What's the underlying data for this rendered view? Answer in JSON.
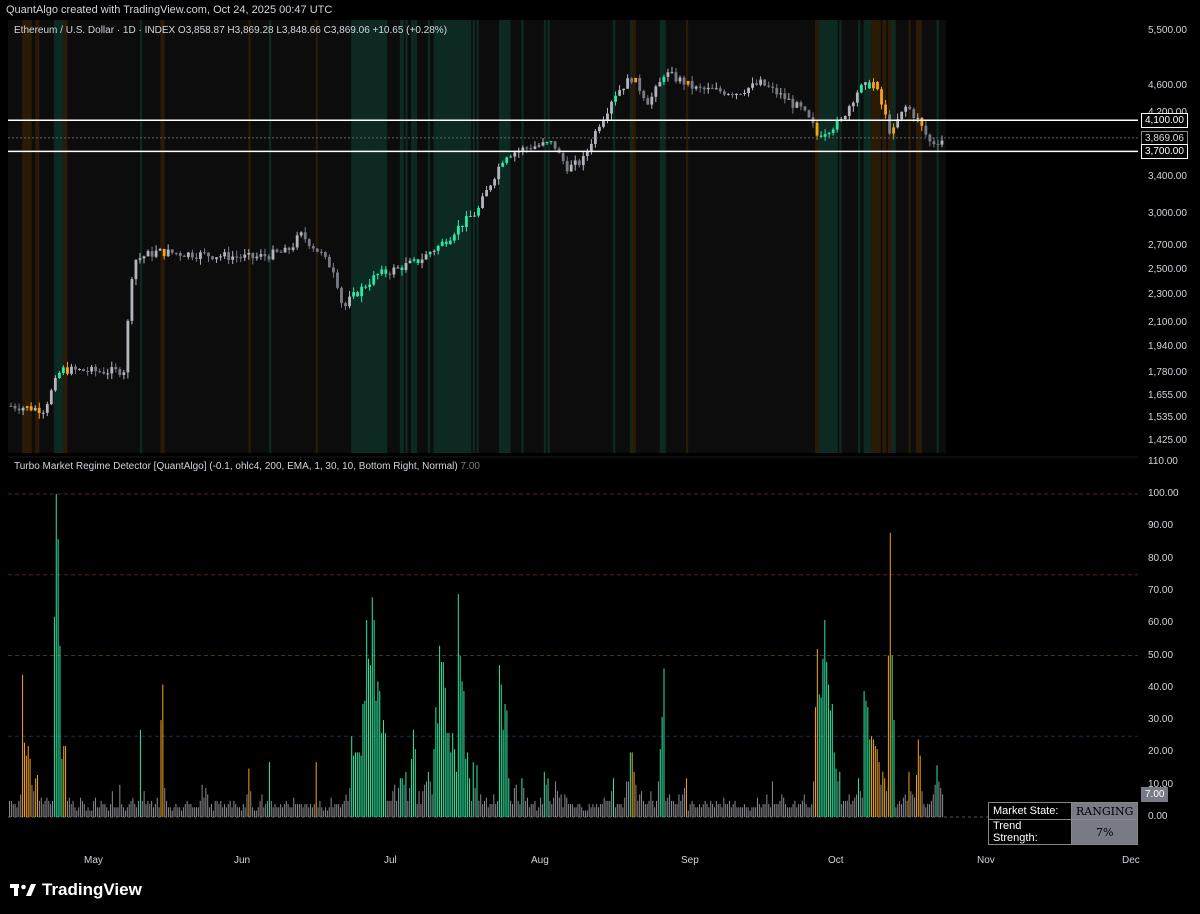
{
  "attribution": "QuantAlgo created with TradingView.com, Oct 24, 2025 00:47 UTC",
  "symbol_legend": "Ethereum / U.S. Dollar · 1D · INDEX  O3,858.87  H3,869.28  L3,848.66  C3,869.06  +10.65 (+0.28%)",
  "indicator_legend": "Turbo Market Regime Detector [QuantAlgo] (-0.1, ohlc4, 200, EMA, 1, 30, 10, Bottom Right, Normal)",
  "indicator_value": "7.00",
  "colors": {
    "trend_up": "#2ee8a0",
    "trend_down": "#f5a31a",
    "ranging": "#8a8a90",
    "bg_trend_up": "#0d2a22",
    "bg_trend_down": "#2a1a06"
  },
  "price_axis": {
    "labels": [
      "5,500.00",
      "4,600.00",
      "4,200.00",
      "3,400.00",
      "3,000.00",
      "2,700.00",
      "2,500.00",
      "2,300.00",
      "2,100.00",
      "1,940.00",
      "1,780.00",
      "1,655.00",
      "1,535.00",
      "1,425.00"
    ],
    "values": [
      5500,
      4600,
      4200,
      3400,
      3000,
      2700,
      2500,
      2300,
      2100,
      1940,
      1780,
      1655,
      1535,
      1425
    ],
    "tags": [
      {
        "label": "4,100.00",
        "value": 4100,
        "kind": "level"
      },
      {
        "label": "3,869.06",
        "value": 3869.06,
        "kind": "current"
      },
      {
        "label": "3,700.00",
        "value": 3700,
        "kind": "level"
      }
    ]
  },
  "osc_axis": {
    "labels": [
      "110.00",
      "100.00",
      "90.00",
      "80.00",
      "70.00",
      "60.00",
      "50.00",
      "40.00",
      "30.00",
      "20.00",
      "10.00",
      "0.00"
    ],
    "values": [
      110,
      100,
      90,
      80,
      70,
      60,
      50,
      40,
      30,
      20,
      10,
      0
    ],
    "current_tag": "7.00",
    "threshold_lines": [
      100,
      75,
      50,
      25
    ]
  },
  "time_axis": {
    "labels": [
      "May",
      "Jun",
      "Jul",
      "Aug",
      "Sep",
      "Oct",
      "Nov",
      "Dec"
    ]
  },
  "status_table": {
    "state_label": "Market State:",
    "state_value": "RANGING",
    "strength_label": "Trend Strength:",
    "strength_value": "7%"
  },
  "brand": "TradingView",
  "chart_data": {
    "type": "bar",
    "series": [
      {
        "values": [
          5,
          5,
          4,
          4,
          3,
          5,
          7,
          44,
          23,
          19,
          22,
          18,
          10,
          8,
          12,
          13,
          5,
          6,
          4,
          5,
          6,
          5,
          4,
          5,
          62,
          100,
          86,
          53,
          18,
          22,
          22,
          5,
          6,
          4,
          5,
          3,
          2,
          3,
          6,
          5,
          4,
          2,
          3,
          2,
          2,
          5,
          6,
          3,
          3,
          5,
          4,
          4,
          3,
          2,
          4,
          8,
          3,
          3,
          3,
          10,
          4,
          3,
          2,
          3,
          4,
          5,
          6,
          4,
          3,
          5,
          27,
          5,
          8,
          4,
          5,
          4,
          5,
          3,
          4,
          6,
          3,
          30,
          41,
          9,
          5,
          3,
          3,
          2,
          3,
          4,
          3,
          3,
          2,
          3,
          4,
          5,
          4,
          4,
          3,
          3,
          3,
          3,
          5,
          10,
          6,
          9,
          7,
          3,
          4,
          2,
          5,
          5,
          4,
          5,
          3,
          4,
          3,
          4,
          5,
          3,
          5,
          4,
          3,
          3,
          2,
          4,
          3,
          7,
          15,
          8,
          3,
          2,
          2,
          3,
          5,
          7,
          3,
          4,
          5,
          17,
          5,
          3,
          4,
          3,
          3,
          4,
          3,
          4,
          5,
          4,
          3,
          3,
          6,
          4,
          4,
          4,
          4,
          3,
          4,
          4,
          3,
          4,
          3,
          4,
          17,
          3,
          5,
          3,
          2,
          3,
          2,
          3,
          6,
          3,
          4,
          4,
          4,
          3,
          4,
          5,
          7,
          5,
          9,
          25,
          19,
          20,
          20,
          20,
          19,
          35,
          36,
          61,
          49,
          47,
          68,
          61,
          36,
          42,
          39,
          26,
          30,
          26,
          5,
          5,
          5,
          8,
          10,
          5,
          9,
          12,
          12,
          10,
          14,
          5,
          9,
          18,
          27,
          21,
          4,
          8,
          4,
          8,
          10,
          11,
          14,
          11,
          7,
          21,
          34,
          29,
          53,
          48,
          48,
          40,
          26,
          26,
          20,
          26,
          21,
          14,
          69,
          50,
          42,
          39,
          18,
          20,
          12,
          5,
          17,
          9,
          16,
          5,
          7,
          4,
          5,
          6,
          3,
          4,
          4,
          7,
          4,
          5,
          47,
          41,
          27,
          35,
          33,
          12,
          5,
          4,
          9,
          10,
          5,
          4,
          12,
          9,
          5,
          6,
          3,
          4,
          4,
          5,
          2,
          3,
          6,
          4,
          14,
          10,
          12,
          5,
          4,
          6,
          11,
          8,
          6,
          7,
          3,
          7,
          6,
          4,
          4,
          4,
          3,
          3,
          4,
          4,
          3,
          2,
          2,
          2,
          4,
          3,
          4,
          3,
          4,
          3,
          4,
          4,
          6,
          5,
          5,
          5,
          8,
          12,
          3,
          4,
          4,
          4,
          3,
          6,
          11,
          11,
          20,
          20,
          14,
          10,
          5,
          7,
          8,
          5,
          4,
          4,
          5,
          8,
          5,
          3,
          5,
          11,
          21,
          31,
          46,
          5,
          6,
          7,
          5,
          5,
          4,
          4,
          7,
          5,
          7,
          9,
          12,
          2,
          4,
          5,
          4,
          3,
          3,
          4,
          3,
          4,
          5,
          4,
          3,
          5,
          4,
          3,
          5,
          4,
          4,
          3,
          6,
          4,
          4,
          5,
          3,
          4,
          5,
          3,
          3,
          3,
          3,
          4,
          3,
          3,
          2,
          3,
          3,
          3,
          6,
          4,
          3,
          4,
          4,
          7,
          4,
          3,
          11,
          4,
          4,
          4,
          5,
          7,
          6,
          4,
          3,
          3,
          3,
          4,
          5,
          3,
          4,
          4,
          5,
          7,
          4,
          3,
          3,
          4,
          11,
          34,
          52,
          38,
          37,
          49,
          61,
          48,
          41,
          33,
          35,
          20,
          15,
          11,
          14,
          4,
          5,
          5,
          5,
          7,
          4,
          5,
          6,
          7,
          12,
          8,
          6,
          39,
          36,
          34,
          24,
          25,
          24,
          22,
          21,
          17,
          10,
          14,
          12,
          8,
          50,
          88,
          50,
          30,
          3,
          4,
          5,
          4,
          6,
          7,
          5,
          14,
          8,
          7,
          6,
          13,
          24,
          19,
          8,
          4,
          3,
          4,
          4,
          5,
          7,
          10,
          16,
          11,
          9,
          7
        ]
      }
    ],
    "ylim": [
      0,
      110
    ]
  }
}
